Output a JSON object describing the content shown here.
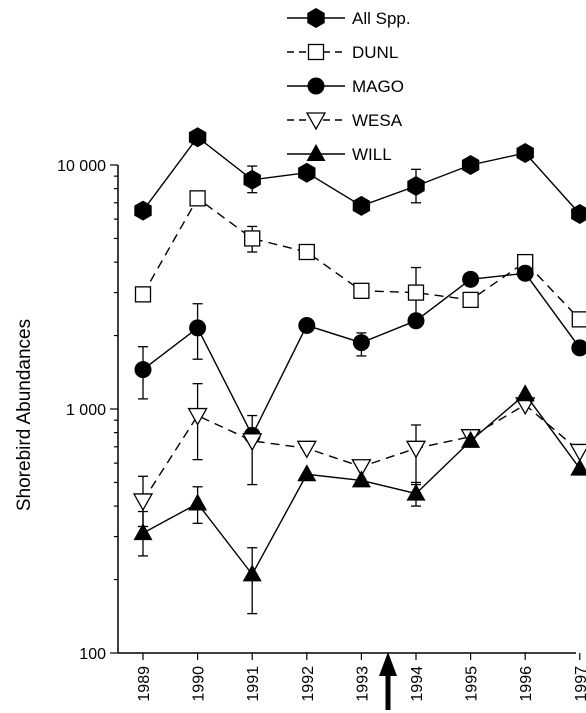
{
  "chart_data": {
    "type": "line",
    "y_scale": "log",
    "ylabel": "Shorebird Abundances",
    "xlabel": "",
    "ylim": [
      100,
      15000
    ],
    "y_ticks": [
      100,
      1000,
      10000
    ],
    "y_tick_labels": [
      "100",
      "1 000",
      "10 000"
    ],
    "categories": [
      "1989",
      "1990",
      "1991",
      "1992",
      "1993",
      "1994",
      "1995",
      "1996",
      "1997"
    ],
    "annotation": {
      "type": "arrow",
      "between": [
        "1993",
        "1994"
      ]
    },
    "grid": false,
    "legend_position": "top-center",
    "series": [
      {
        "name": "All Spp.",
        "marker": "hexagon-filled",
        "line": "solid",
        "values": [
          6500,
          13000,
          8700,
          9300,
          6800,
          8200,
          10000,
          11200,
          6300
        ],
        "errors": [
          null,
          null,
          [
            7700,
            9900
          ],
          null,
          null,
          [
            7000,
            9600
          ],
          null,
          null,
          null
        ]
      },
      {
        "name": "DUNL",
        "marker": "square-open",
        "line": "dashed",
        "values": [
          2950,
          7300,
          5000,
          4400,
          3050,
          3000,
          2800,
          4000,
          2330
        ],
        "errors": [
          null,
          null,
          [
            4400,
            5600
          ],
          null,
          null,
          [
            2300,
            3800
          ],
          null,
          null,
          null
        ]
      },
      {
        "name": "MAGO",
        "marker": "circle-filled",
        "line": "solid",
        "values": [
          1450,
          2150,
          780,
          2200,
          1870,
          2300,
          3400,
          3600,
          1780
        ],
        "errors": [
          [
            1100,
            1800
          ],
          [
            1600,
            2700
          ],
          null,
          null,
          [
            1650,
            2050
          ],
          null,
          null,
          null,
          null
        ]
      },
      {
        "name": "WESA",
        "marker": "triangle-down-open",
        "line": "dashed",
        "values": [
          420,
          940,
          740,
          690,
          580,
          690,
          770,
          1040,
          670
        ],
        "errors": [
          [
            330,
            530
          ],
          [
            620,
            1270
          ],
          [
            490,
            940
          ],
          null,
          null,
          [
            490,
            860
          ],
          null,
          null,
          null
        ]
      },
      {
        "name": "WILL",
        "marker": "triangle-up-filled",
        "line": "solid",
        "values": [
          310,
          410,
          210,
          540,
          510,
          450,
          740,
          1150,
          570
        ],
        "errors": [
          [
            250,
            380
          ],
          [
            340,
            480
          ],
          [
            145,
            270
          ],
          null,
          null,
          [
            400,
            500
          ],
          null,
          null,
          null
        ]
      }
    ]
  }
}
